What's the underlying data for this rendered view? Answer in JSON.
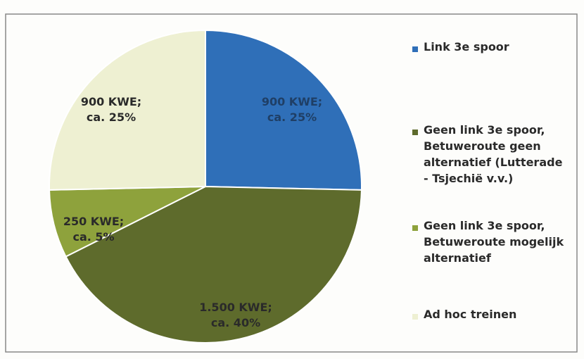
{
  "chart_data": {
    "type": "pie",
    "categories": [
      "Link 3e spoor",
      "Geen link 3e spoor, Betuweroute geen alternatief (Lutterade - Tsjechië v.v.)",
      "Geen link 3e spoor, Betuweroute mogelijk alternatief",
      "Ad hoc treinen"
    ],
    "values": [
      900,
      1500,
      250,
      900
    ],
    "value_labels": [
      "900 KWE;\nca. 25%",
      "1.500 KWE;\nca. 40%",
      "250 KWE;\nca. 5%",
      "900 KWE;\nca. 25%"
    ],
    "colors": [
      "#2f6fb8",
      "#5e6b2c",
      "#8ea23c",
      "#eef0d2"
    ],
    "legend": "right"
  }
}
